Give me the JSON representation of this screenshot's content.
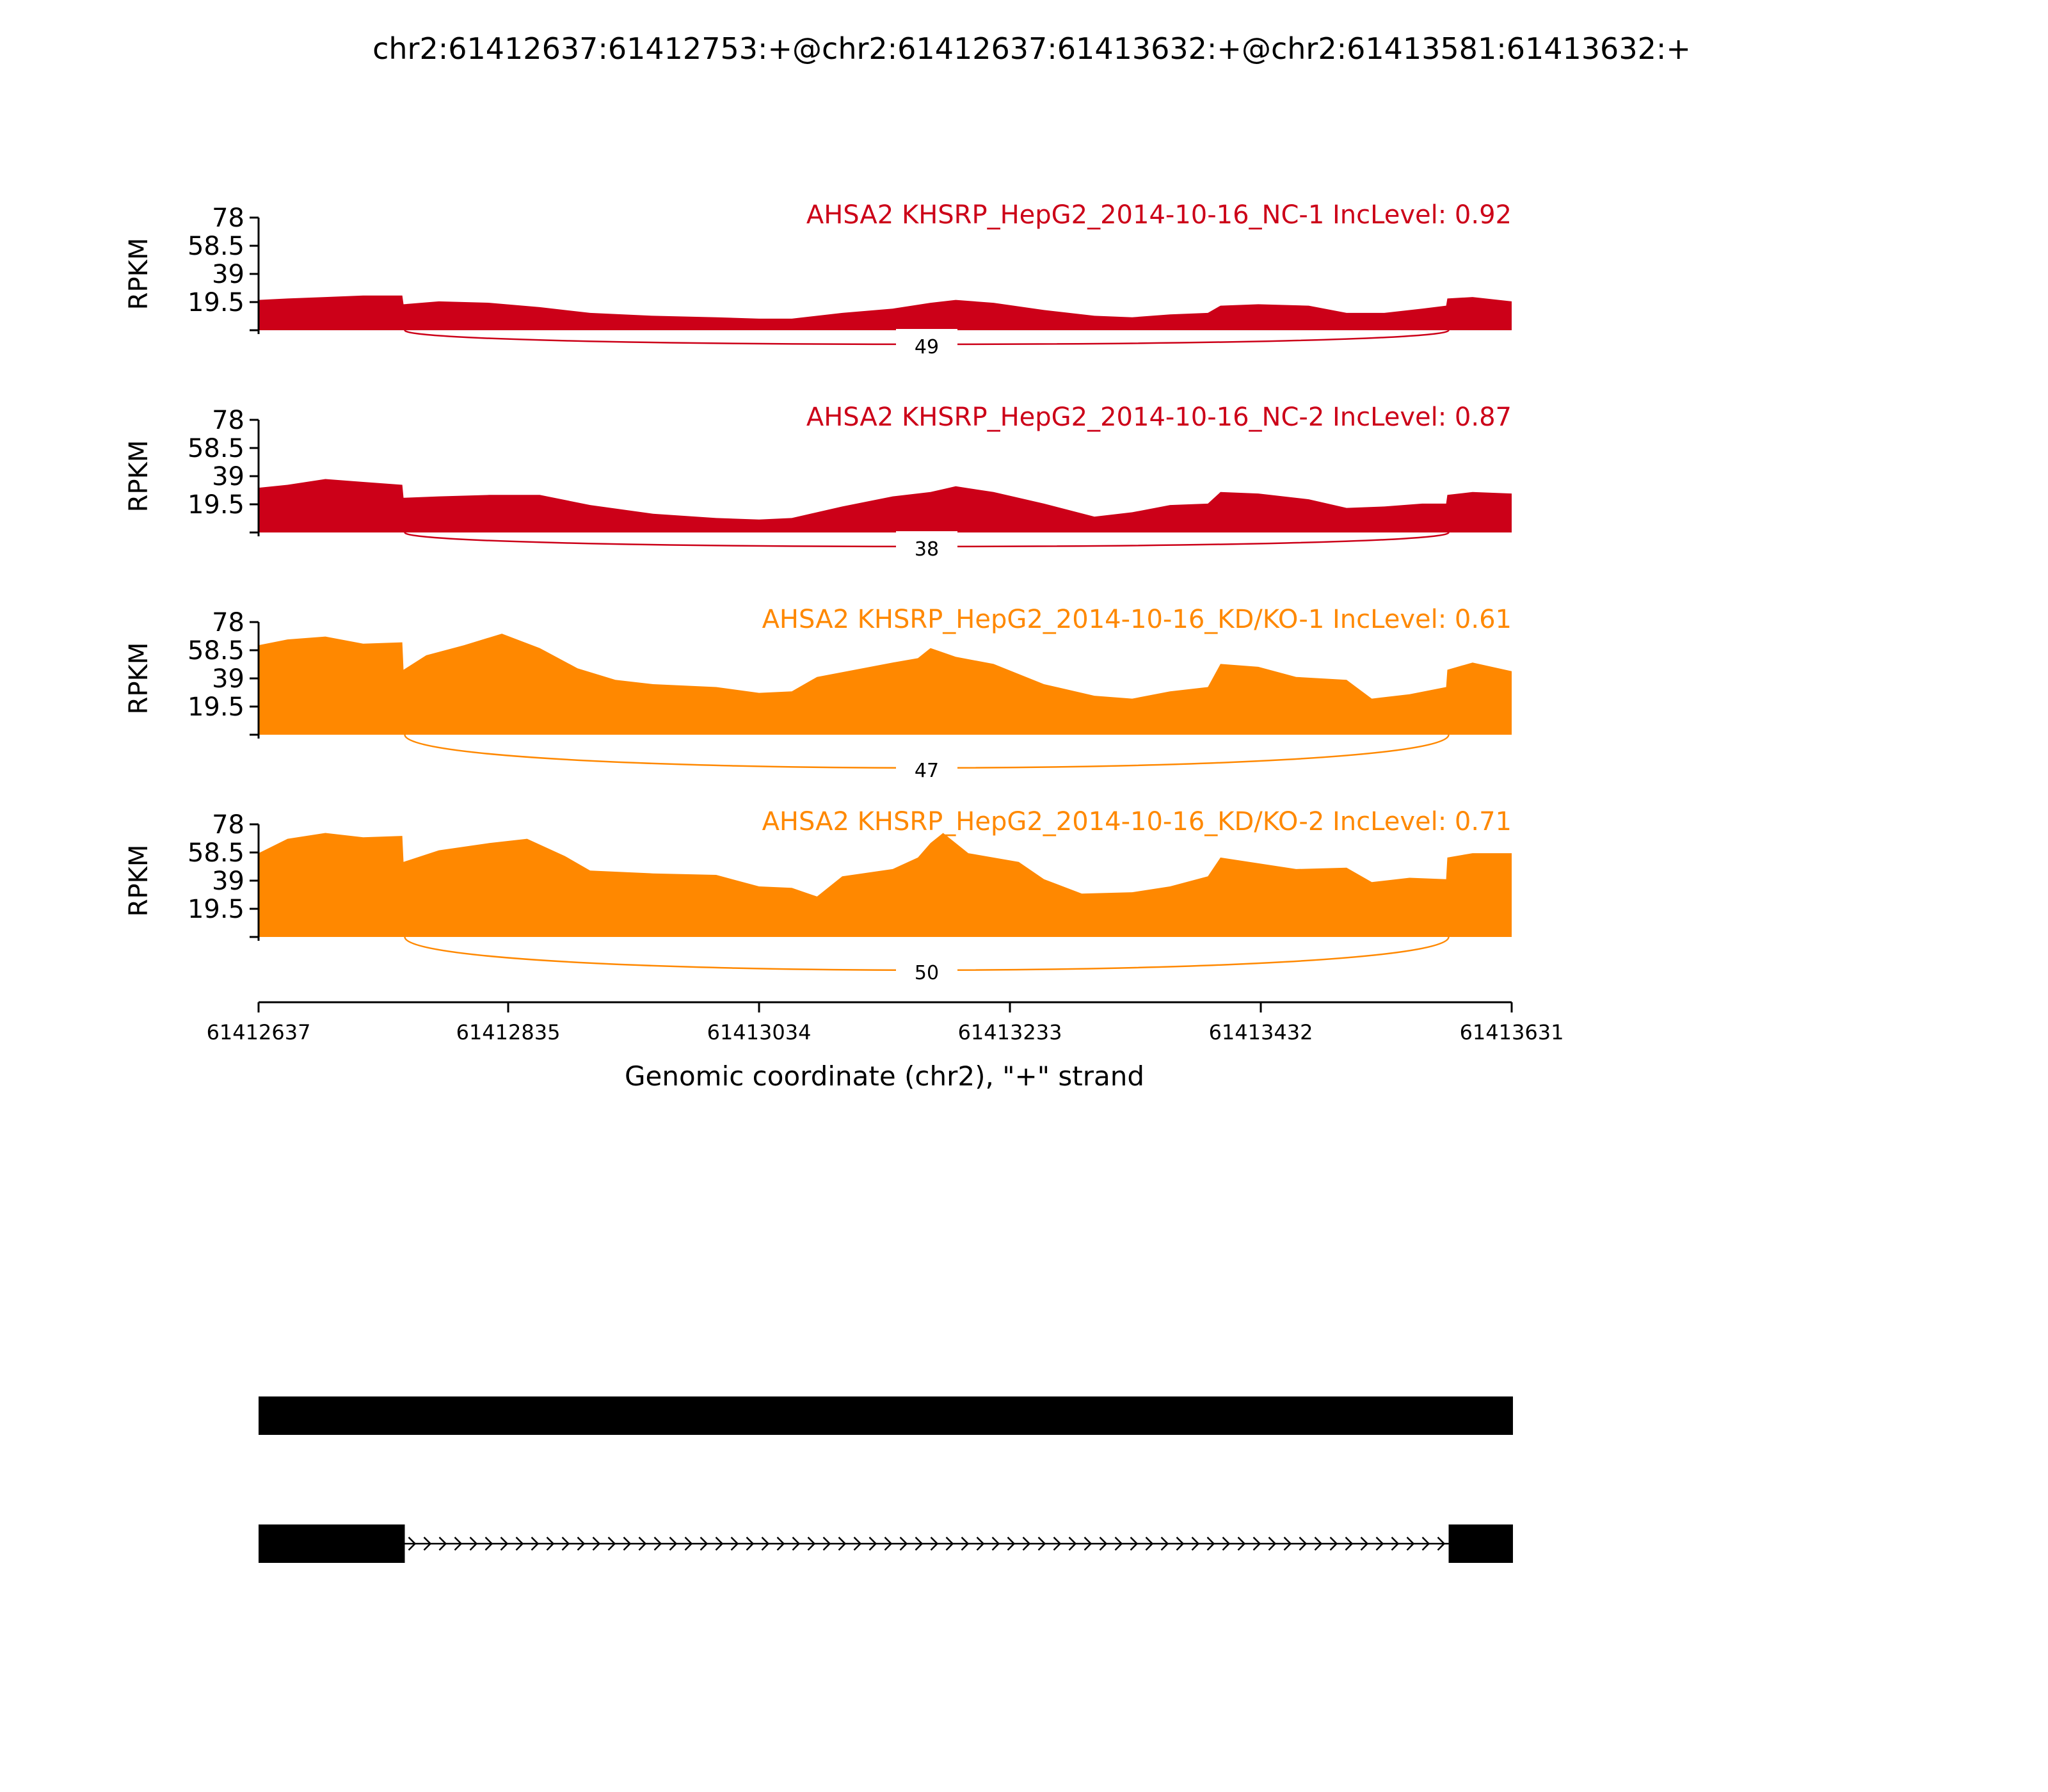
{
  "title": "chr2:61412637:61412753:+@chr2:61412637:61413632:+@chr2:61413581:61413632:+",
  "colors": {
    "nc": "#cc0018",
    "kd": "#ff8800",
    "axis": "#000000",
    "gene": "#000000"
  },
  "chart_data": {
    "type": "area",
    "x_axis": {
      "label": "Genomic coordinate (chr2), \"+\" strand",
      "ticks": [
        61412637,
        61412835,
        61413034,
        61413233,
        61413432,
        61413631
      ],
      "tick_labels": [
        "61412637",
        "61412835",
        "61413034",
        "61413233",
        "61413432",
        "61413631"
      ],
      "range": [
        61412637,
        61413631
      ]
    },
    "y_axis": {
      "label": "RPKM",
      "ticks": [
        19.5,
        39,
        58.5,
        78
      ],
      "tick_labels": [
        "19.5",
        "39",
        "58.5",
        "78"
      ],
      "range": [
        0,
        78
      ]
    },
    "exons": [
      [
        61412637,
        61412753
      ],
      [
        61413581,
        61413632
      ]
    ],
    "tracks": [
      {
        "name": "AHSA2 KHSRP_HepG2_2014-10-16_NC-1 IncLevel: 0.92",
        "group": "nc",
        "junction_count": "49",
        "coverage": [
          [
            61412637,
            21
          ],
          [
            61412660,
            22
          ],
          [
            61412690,
            23
          ],
          [
            61412720,
            24
          ],
          [
            61412751,
            24
          ],
          [
            61412752,
            18
          ],
          [
            61412780,
            20
          ],
          [
            61412820,
            19
          ],
          [
            61412860,
            16
          ],
          [
            61412900,
            12
          ],
          [
            61412950,
            10
          ],
          [
            61413000,
            9
          ],
          [
            61413034,
            8
          ],
          [
            61413060,
            8
          ],
          [
            61413100,
            12
          ],
          [
            61413140,
            15
          ],
          [
            61413170,
            19
          ],
          [
            61413190,
            21
          ],
          [
            61413220,
            19
          ],
          [
            61413260,
            14
          ],
          [
            61413300,
            10
          ],
          [
            61413330,
            9
          ],
          [
            61413360,
            11
          ],
          [
            61413390,
            12
          ],
          [
            61413400,
            17
          ],
          [
            61413430,
            18
          ],
          [
            61413470,
            17
          ],
          [
            61413500,
            12
          ],
          [
            61413530,
            12
          ],
          [
            61413560,
            15
          ],
          [
            61413579,
            17
          ],
          [
            61413580,
            22
          ],
          [
            61413600,
            23
          ],
          [
            61413631,
            20
          ]
        ]
      },
      {
        "name": "AHSA2 KHSRP_HepG2_2014-10-16_NC-2 IncLevel: 0.87",
        "group": "nc",
        "junction_count": "38",
        "coverage": [
          [
            61412637,
            31
          ],
          [
            61412660,
            33
          ],
          [
            61412690,
            37
          ],
          [
            61412720,
            35
          ],
          [
            61412751,
            33
          ],
          [
            61412752,
            24
          ],
          [
            61412780,
            25
          ],
          [
            61412820,
            26
          ],
          [
            61412860,
            26
          ],
          [
            61412900,
            19
          ],
          [
            61412950,
            13
          ],
          [
            61413000,
            10
          ],
          [
            61413034,
            9
          ],
          [
            61413060,
            10
          ],
          [
            61413100,
            18
          ],
          [
            61413140,
            25
          ],
          [
            61413170,
            28
          ],
          [
            61413190,
            32
          ],
          [
            61413220,
            28
          ],
          [
            61413260,
            20
          ],
          [
            61413300,
            11
          ],
          [
            61413330,
            14
          ],
          [
            61413360,
            19
          ],
          [
            61413390,
            20
          ],
          [
            61413400,
            28
          ],
          [
            61413430,
            27
          ],
          [
            61413470,
            23
          ],
          [
            61413500,
            17
          ],
          [
            61413530,
            18
          ],
          [
            61413560,
            20
          ],
          [
            61413579,
            20
          ],
          [
            61413580,
            26
          ],
          [
            61413600,
            28
          ],
          [
            61413631,
            27
          ]
        ]
      },
      {
        "name": "AHSA2 KHSRP_HepG2_2014-10-16_KD/KO-1 IncLevel: 0.61",
        "group": "kd",
        "junction_count": "47",
        "coverage": [
          [
            61412637,
            62
          ],
          [
            61412660,
            66
          ],
          [
            61412690,
            68
          ],
          [
            61412720,
            63
          ],
          [
            61412751,
            64
          ],
          [
            61412752,
            45
          ],
          [
            61412770,
            55
          ],
          [
            61412800,
            62
          ],
          [
            61412830,
            70
          ],
          [
            61412860,
            60
          ],
          [
            61412890,
            46
          ],
          [
            61412920,
            38
          ],
          [
            61412950,
            35
          ],
          [
            61413000,
            33
          ],
          [
            61413034,
            29
          ],
          [
            61413060,
            30
          ],
          [
            61413080,
            40
          ],
          [
            61413110,
            45
          ],
          [
            61413140,
            50
          ],
          [
            61413160,
            53
          ],
          [
            61413170,
            60
          ],
          [
            61413190,
            54
          ],
          [
            61413220,
            49
          ],
          [
            61413260,
            35
          ],
          [
            61413300,
            27
          ],
          [
            61413330,
            25
          ],
          [
            61413360,
            30
          ],
          [
            61413390,
            33
          ],
          [
            61413400,
            49
          ],
          [
            61413430,
            47
          ],
          [
            61413460,
            40
          ],
          [
            61413500,
            38
          ],
          [
            61413520,
            25
          ],
          [
            61413550,
            28
          ],
          [
            61413579,
            33
          ],
          [
            61413580,
            45
          ],
          [
            61413600,
            50
          ],
          [
            61413631,
            44
          ]
        ]
      },
      {
        "name": "AHSA2 KHSRP_HepG2_2014-10-16_KD/KO-2 IncLevel: 0.71",
        "group": "kd",
        "junction_count": "50",
        "coverage": [
          [
            61412637,
            58
          ],
          [
            61412660,
            68
          ],
          [
            61412690,
            72
          ],
          [
            61412720,
            69
          ],
          [
            61412751,
            70
          ],
          [
            61412752,
            52
          ],
          [
            61412780,
            60
          ],
          [
            61412820,
            65
          ],
          [
            61412850,
            68
          ],
          [
            61412880,
            56
          ],
          [
            61412900,
            46
          ],
          [
            61412950,
            44
          ],
          [
            61413000,
            43
          ],
          [
            61413034,
            35
          ],
          [
            61413060,
            34
          ],
          [
            61413080,
            28
          ],
          [
            61413100,
            42
          ],
          [
            61413140,
            47
          ],
          [
            61413160,
            55
          ],
          [
            61413170,
            65
          ],
          [
            61413180,
            72
          ],
          [
            61413200,
            58
          ],
          [
            61413240,
            52
          ],
          [
            61413260,
            40
          ],
          [
            61413290,
            30
          ],
          [
            61413330,
            31
          ],
          [
            61413360,
            35
          ],
          [
            61413390,
            42
          ],
          [
            61413400,
            55
          ],
          [
            61413430,
            51
          ],
          [
            61413460,
            47
          ],
          [
            61413500,
            48
          ],
          [
            61413520,
            38
          ],
          [
            61413550,
            41
          ],
          [
            61413579,
            40
          ],
          [
            61413580,
            55
          ],
          [
            61413600,
            58
          ],
          [
            61413631,
            58
          ]
        ]
      }
    ]
  }
}
